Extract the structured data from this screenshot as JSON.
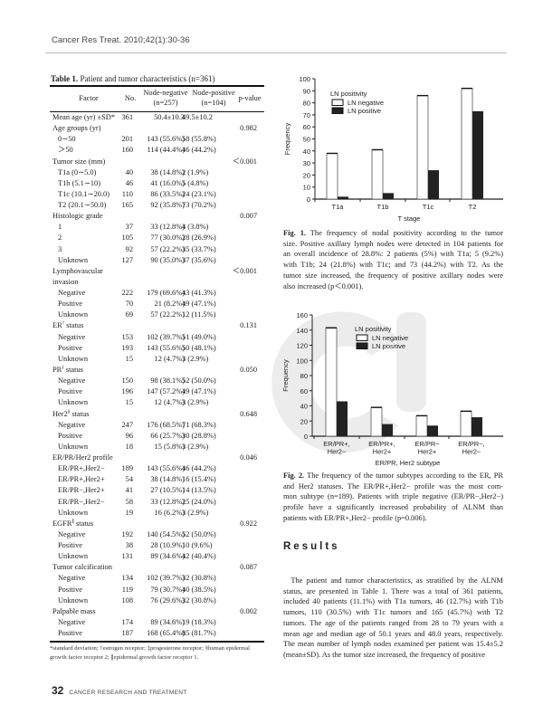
{
  "running_head": "Cancer Res Treat. 2010;42(1):30-36",
  "table": {
    "title_bold": "Table 1.",
    "title_rest": " Patient and tumor characteristics (n=361)",
    "headers": {
      "factor": "Factor",
      "no": "No.",
      "neg": "Node-negative",
      "neg_n": "(n=257)",
      "pos": "Node-positive",
      "pos_n": "(n=104)",
      "p": "p-value"
    },
    "rows": [
      {
        "f": "Mean age (yr) ±SD*",
        "n": "361",
        "neg": "50.4±10.3",
        "pos": "49.5±10.2",
        "p": "",
        "ind": false
      },
      {
        "f": "Age groups (yr)",
        "n": "",
        "neg": "",
        "pos": "",
        "p": "0.982",
        "ind": false
      },
      {
        "f": "0∼50",
        "n": "201",
        "neg": "143 (55.6%)",
        "pos": "58 (55.8%)",
        "p": "",
        "ind": true
      },
      {
        "f": "＞50",
        "n": "160",
        "neg": "114 (44.4%)",
        "pos": "46 (44.2%)",
        "p": "",
        "ind": true
      },
      {
        "f": "Tumor size (mm)",
        "n": "",
        "neg": "",
        "pos": "",
        "p": "＜0.001",
        "ind": false
      },
      {
        "f": "T1a (0∼5.0)",
        "n": "40",
        "neg": "38 (14.8%)",
        "pos": "2 (1.9%)",
        "p": "",
        "ind": true
      },
      {
        "f": "T1b (5.1∼10)",
        "n": "46",
        "neg": "41 (16.0%)",
        "pos": "5 (4.8%)",
        "p": "",
        "ind": true
      },
      {
        "f": "T1c (10.1∼20.0)",
        "n": "110",
        "neg": "86 (33.5%)",
        "pos": "24 (23.1%)",
        "p": "",
        "ind": true
      },
      {
        "f": "T2 (20.1∼50.0)",
        "n": "165",
        "neg": "92 (35.8%)",
        "pos": "73 (70.2%)",
        "p": "",
        "ind": true
      },
      {
        "f": "Histologic grade",
        "n": "",
        "neg": "",
        "pos": "",
        "p": "0.007",
        "ind": false
      },
      {
        "f": "1",
        "n": "37",
        "neg": "33 (12.8%)",
        "pos": "4 (3.8%)",
        "p": "",
        "ind": true
      },
      {
        "f": "2",
        "n": "105",
        "neg": "77 (30.0%)",
        "pos": "28 (26.9%)",
        "p": "",
        "ind": true
      },
      {
        "f": "3",
        "n": "92",
        "neg": "57 (22.2%)",
        "pos": "35 (33.7%)",
        "p": "",
        "ind": true
      },
      {
        "f": "Unknown",
        "n": "127",
        "neg": "90 (35.0%)",
        "pos": "37 (35.6%)",
        "p": "",
        "ind": true
      },
      {
        "f": "Lymphovascular",
        "n": "",
        "neg": "",
        "pos": "",
        "p": "＜0.001",
        "ind": false
      },
      {
        "f": " invasion",
        "n": "",
        "neg": "",
        "pos": "",
        "p": "",
        "ind": false
      },
      {
        "f": "Negative",
        "n": "222",
        "neg": "179 (69.6%)",
        "pos": "43 (41.3%)",
        "p": "",
        "ind": true
      },
      {
        "f": "Positive",
        "n": "70",
        "neg": "21 (8.2%)",
        "pos": "49 (47.1%)",
        "p": "",
        "ind": true
      },
      {
        "f": "Unknown",
        "n": "69",
        "neg": "57 (22.2%)",
        "pos": "12 (11.5%)",
        "p": "",
        "ind": true
      },
      {
        "f": "ER",
        "sup": "†",
        "f2": " status",
        "n": "",
        "neg": "",
        "pos": "",
        "p": "0.131",
        "ind": false
      },
      {
        "f": "Negative",
        "n": "153",
        "neg": "102 (39.7%)",
        "pos": "51 (49.0%)",
        "p": "",
        "ind": true
      },
      {
        "f": "Positive",
        "n": "193",
        "neg": "143 (55.6%)",
        "pos": "50 (48.1%)",
        "p": "",
        "ind": true
      },
      {
        "f": "Unknown",
        "n": "15",
        "neg": "12 (4.7%)",
        "pos": "3 (2.9%)",
        "p": "",
        "ind": true
      },
      {
        "f": "PR",
        "sup": "‡",
        "f2": " status",
        "n": "",
        "neg": "",
        "pos": "",
        "p": "0.050",
        "ind": false
      },
      {
        "f": "Negative",
        "n": "150",
        "neg": "98 (38.1%)",
        "pos": "52 (50.0%)",
        "p": "",
        "ind": true
      },
      {
        "f": "Positive",
        "n": "196",
        "neg": "147 (57.2%)",
        "pos": "49 (47.1%)",
        "p": "",
        "ind": true
      },
      {
        "f": "Unknown",
        "n": "15",
        "neg": "12 (4.7%)",
        "pos": "3 (2.9%)",
        "p": "",
        "ind": true
      },
      {
        "f": "Her2",
        "sup": "§",
        "f2": " status",
        "n": "",
        "neg": "",
        "pos": "",
        "p": "0.648",
        "ind": false
      },
      {
        "f": "Negative",
        "n": "247",
        "neg": "176 (68.5%)",
        "pos": "71 (68.3%)",
        "p": "",
        "ind": true
      },
      {
        "f": "Positive",
        "n": "96",
        "neg": "66 (25.7%)",
        "pos": "30 (28.8%)",
        "p": "",
        "ind": true
      },
      {
        "f": "Unknown",
        "n": "18",
        "neg": "15 (5.8%)",
        "pos": "3 (2.9%)",
        "p": "",
        "ind": true
      },
      {
        "f": "ER/PR/Her2 profile",
        "n": "",
        "neg": "",
        "pos": "",
        "p": "0.046",
        "ind": false
      },
      {
        "f": "ER/PR+,Her2−",
        "n": "189",
        "neg": "143 (55.6%)",
        "pos": "46 (44.2%)",
        "p": "",
        "ind": true
      },
      {
        "f": "ER/PR+,Her2+",
        "n": "54",
        "neg": "38 (14.8%)",
        "pos": "16 (15.4%)",
        "p": "",
        "ind": true
      },
      {
        "f": "ER/PR−,Her2+",
        "n": "41",
        "neg": "27 (10.5%)",
        "pos": "14 (13.5%)",
        "p": "",
        "ind": true
      },
      {
        "f": "ER/PR−,Her2−",
        "n": "58",
        "neg": "33 (12.8%)",
        "pos": "25 (24.0%)",
        "p": "",
        "ind": true
      },
      {
        "f": "Unknown",
        "n": "19",
        "neg": "16 (6.2%)",
        "pos": "3 (2.9%)",
        "p": "",
        "ind": true
      },
      {
        "f": "EGFR",
        "sup": "∥",
        "f2": " status",
        "n": "",
        "neg": "",
        "pos": "",
        "p": "0.922",
        "ind": false
      },
      {
        "f": "Negative",
        "n": "192",
        "neg": "140 (54.5%)",
        "pos": "52 (50.0%)",
        "p": "",
        "ind": true
      },
      {
        "f": "Positive",
        "n": "38",
        "neg": "28 (10.9%)",
        "pos": "10 (9.6%)",
        "p": "",
        "ind": true
      },
      {
        "f": "Unknown",
        "n": "131",
        "neg": "89 (34.6%)",
        "pos": "42 (40.4%)",
        "p": "",
        "ind": true
      },
      {
        "f": "Tumor calcification",
        "n": "",
        "neg": "",
        "pos": "",
        "p": "0.087",
        "ind": false
      },
      {
        "f": "Negative",
        "n": "134",
        "neg": "102 (39.7%)",
        "pos": "32 (30.8%)",
        "p": "",
        "ind": true
      },
      {
        "f": "Positive",
        "n": "119",
        "neg": "79 (30.7%)",
        "pos": "40 (38.5%)",
        "p": "",
        "ind": true
      },
      {
        "f": "Unknown",
        "n": "108",
        "neg": "76 (29.6%)",
        "pos": "32 (30.8%)",
        "p": "",
        "ind": true
      },
      {
        "f": "Palpable mass",
        "n": "",
        "neg": "",
        "pos": "",
        "p": "0.002",
        "ind": false
      },
      {
        "f": "Negative",
        "n": "174",
        "neg": "89 (34.6%)",
        "pos": "19 (18.3%)",
        "p": "",
        "ind": true
      },
      {
        "f": "Positive",
        "n": "187",
        "neg": "168 (65.4%)",
        "pos": "85 (81.7%)",
        "p": "",
        "ind": true
      }
    ],
    "footnote": "*standard deviation; †estrogen receptor; ‡progesterone receptor; §human epidermal growth factor receptor 2; ∥epidermal growth factor receptor 1."
  },
  "chart_data": [
    {
      "type": "bar",
      "title": "",
      "xlabel": "T stage",
      "ylabel": "Frequency",
      "ylim": [
        0,
        100
      ],
      "yticks": [
        0,
        10,
        20,
        30,
        40,
        50,
        60,
        70,
        80,
        90,
        100
      ],
      "categories": [
        "T1a",
        "T1b",
        "T1c",
        "T2"
      ],
      "legend_title": "LN positivity",
      "legend_position": "top-left",
      "series": [
        {
          "name": "LN negative",
          "values": [
            38,
            41,
            86,
            92
          ],
          "color": "#ffffff"
        },
        {
          "name": "LN positive",
          "values": [
            2,
            5,
            24,
            73
          ],
          "color": "#222222"
        }
      ]
    },
    {
      "type": "bar",
      "title": "",
      "xlabel": "ER/PR, Her2 subtype",
      "ylabel": "Frequency",
      "ylim": [
        0,
        160
      ],
      "yticks": [
        0,
        20,
        40,
        60,
        80,
        100,
        120,
        140,
        160
      ],
      "categories": [
        [
          "ER/PR+,",
          "Her2−"
        ],
        [
          "ER/PR+,",
          "Her2+"
        ],
        [
          "ER/PR−",
          "Her2+"
        ],
        [
          "ER/PR−,",
          "Her2−"
        ]
      ],
      "legend_title": "LN positivity",
      "legend_position": "top-center",
      "series": [
        {
          "name": "LN negative",
          "values": [
            143,
            38,
            27,
            33
          ],
          "color": "#ffffff"
        },
        {
          "name": "LN positive",
          "values": [
            46,
            16,
            14,
            25
          ],
          "color": "#222222"
        }
      ]
    }
  ],
  "fig1_caption": {
    "label": "Fig. 1.",
    "lines": [
      " The frequency of nodal positivity according to the tumor",
      "size. Positive axillary lymph nodes were detected in 104 patients for",
      "an overall incidence of 28.8%: 2 patients (5%) with T1a; 5 (9.2%)",
      "with T1b; 24 (21.8%) with T1c; and 73 (44.2%) with T2. As the",
      "tumor size increased, the frequency of positive axillary nodes were",
      "also increased (p＜0.001)."
    ]
  },
  "fig2_caption": {
    "label": "Fig. 2.",
    "lines": [
      " The frequency of the tumor subtypes according to the ER, PR",
      "and Her2 statuses. The ER/PR+,Her2− profile was the most com-",
      "mon subtype (n=189). Patients with triple negative (ER/PR−,Her2−)",
      "profile have a significantly increased probability of ALNM than",
      "patients with ER/PR+,Her2− profile (p=0.006)."
    ]
  },
  "results": {
    "heading": "Results",
    "lines": [
      " The patient and tumor characteristics, as stratified by the ALNM",
      "status, are presented in Table 1. There was a total of 361 patients,",
      "included 40 patients (11.1%) with T1a tumors, 46 (12.7%) with T1b",
      "tumors, 110 (30.5%) with T1c tumors and 165 (45.7%) with T2",
      "tumors. The age of the patients ranged from 28 to 79 years with a",
      "mean age and median age of 50.1 years and 48.0 years, respectively.",
      "The mean number of lymph nodes examined per patient was 15.4±5.2",
      "(mean±SD). As the tumor size increased, the frequency of positive"
    ]
  },
  "footer": {
    "page": "32",
    "journal": "CANCER RESEARCH AND TREATMENT"
  }
}
